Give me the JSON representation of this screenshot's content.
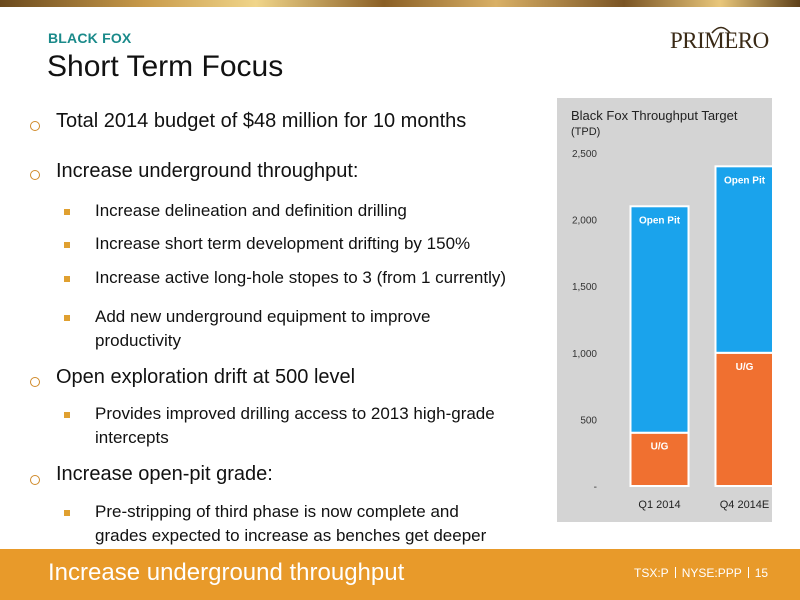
{
  "header": {
    "section_label": "BLACK FOX",
    "title": "Short Term Focus",
    "logo_text": "PRIMERO"
  },
  "bullets": [
    {
      "text": "Total 2014 budget of $48 million for 10 months",
      "subitems": []
    },
    {
      "text": "Increase underground throughput:",
      "subitems": [
        "Increase delineation and definition drilling",
        "Increase short term development drifting by 150%",
        "Increase active long-hole stopes to 3 (from 1 currently)",
        "Add new underground equipment to improve productivity"
      ]
    },
    {
      "text": "Open exploration drift at 500 level",
      "subitems": [
        "Provides improved drilling access to 2013 high-grade intercepts"
      ]
    },
    {
      "text": "Increase open-pit grade:",
      "subitems": [
        "Pre-stripping of third phase is now complete and grades expected to increase as benches get deeper"
      ]
    }
  ],
  "chart_data": {
    "type": "bar",
    "stacked": true,
    "title": "Black Fox Throughput Target",
    "ylabel": "(TPD)",
    "categories": [
      "Q1 2014",
      "Q4 2014E"
    ],
    "series": [
      {
        "name": "U/G",
        "values": [
          400,
          1000
        ],
        "color": "#f07030"
      },
      {
        "name": "Open Pit",
        "values": [
          1700,
          1400
        ],
        "color": "#1aa3ec"
      }
    ],
    "ylim": [
      0,
      2500
    ],
    "yticks": [
      0,
      500,
      1000,
      1500,
      2000,
      2500
    ],
    "ytick_labels": [
      "-",
      "500",
      "1,000",
      "1,500",
      "2,000",
      "2,500"
    ],
    "grid": false
  },
  "footer": {
    "text": "Increase underground throughput",
    "ticker1": "TSX:P",
    "ticker2": "NYSE:PPP",
    "page": "15"
  },
  "colors": {
    "accent_teal": "#1a8a8a",
    "footer_orange": "#e89a2a",
    "bullet_orange": "#e0a030"
  }
}
